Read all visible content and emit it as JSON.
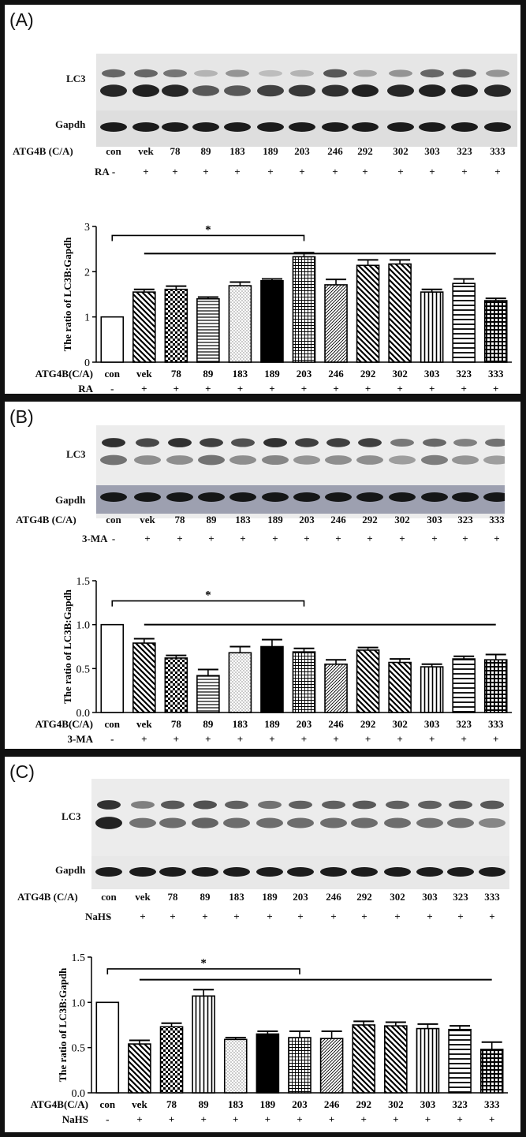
{
  "panels": [
    {
      "label": "(A)",
      "blot_labels": [
        "LC3",
        "Gapdh"
      ],
      "row1_title": "ATG4B (C/A)",
      "row2_title": "RA",
      "lanes": [
        "con",
        "vek",
        "78",
        "89",
        "183",
        "189",
        "203",
        "246",
        "292",
        "302",
        "303",
        "323",
        "333"
      ],
      "treatment": [
        "-",
        "+",
        "+",
        "+",
        "+",
        "+",
        "+",
        "+",
        "+",
        "+",
        "+",
        "+",
        "+"
      ],
      "chart_row1_title": "ATG4B(C/A)",
      "chart_row2_title": "RA"
    },
    {
      "label": "(B)",
      "blot_labels": [
        "LC3",
        "Gapdh"
      ],
      "row1_title": "ATG4B (C/A)",
      "row2_title": "3-MA",
      "lanes": [
        "con",
        "vek",
        "78",
        "89",
        "183",
        "189",
        "203",
        "246",
        "292",
        "302",
        "303",
        "323",
        "333"
      ],
      "treatment": [
        "-",
        "+",
        "+",
        "+",
        "+",
        "+",
        "+",
        "+",
        "+",
        "+",
        "+",
        "+",
        "+"
      ],
      "chart_row1_title": "ATG4B(C/A)",
      "chart_row2_title": "3-MA"
    },
    {
      "label": "(C)",
      "blot_labels": [
        "LC3",
        "Gapdh"
      ],
      "row1_title": "ATG4B (C/A)",
      "row2_title": "NaHS",
      "lanes": [
        "con",
        "vek",
        "78",
        "89",
        "183",
        "189",
        "203",
        "246",
        "292",
        "302",
        "303",
        "323",
        "333"
      ],
      "treatment": [
        "-",
        "+",
        "+",
        "+",
        "+",
        "+",
        "+",
        "+",
        "+",
        "+",
        "+",
        "+",
        "+"
      ],
      "chart_row1_title": "ATG4B(C/A)",
      "chart_row2_title": "NaHS"
    }
  ],
  "chart_data": [
    {
      "type": "bar",
      "categories": [
        "con",
        "vek",
        "78",
        "89",
        "183",
        "189",
        "203",
        "246",
        "292",
        "302",
        "303",
        "323",
        "333"
      ],
      "values": [
        1.0,
        1.55,
        1.61,
        1.4,
        1.69,
        1.8,
        2.33,
        1.71,
        2.14,
        2.17,
        1.55,
        1.74,
        1.36
      ],
      "errors": [
        0,
        0.06,
        0.07,
        0.04,
        0.08,
        0.04,
        0.09,
        0.12,
        0.12,
        0.09,
        0.06,
        0.1,
        0.05
      ],
      "patterns": [
        "open",
        "diagonal",
        "checker",
        "hstripes",
        "dots",
        "solid",
        "grid",
        "diag-dense",
        "diagonal",
        "diagonal",
        "vstripes",
        "hstripes-wide",
        "grid-dark"
      ],
      "ylabel": "The ratio of LC3B:Gapdh",
      "ylim": [
        0,
        3
      ],
      "yticks": [
        0,
        1,
        2,
        3
      ],
      "significance": "*"
    },
    {
      "type": "bar",
      "categories": [
        "con",
        "vek",
        "78",
        "89",
        "183",
        "189",
        "203",
        "246",
        "292",
        "302",
        "303",
        "323",
        "333"
      ],
      "values": [
        1.0,
        0.79,
        0.62,
        0.42,
        0.68,
        0.75,
        0.69,
        0.55,
        0.71,
        0.57,
        0.52,
        0.61,
        0.6
      ],
      "errors": [
        0,
        0.05,
        0.03,
        0.07,
        0.07,
        0.08,
        0.04,
        0.05,
        0.03,
        0.04,
        0.03,
        0.03,
        0.06
      ],
      "patterns": [
        "open",
        "diagonal",
        "checker",
        "hstripes",
        "dots",
        "solid",
        "grid",
        "diag-dense",
        "diagonal",
        "diagonal",
        "vstripes",
        "hstripes-wide",
        "grid-dark"
      ],
      "ylabel": "The ratio of LC3B:Gapdh",
      "ylim": [
        0,
        1.5
      ],
      "yticks": [
        0.0,
        0.5,
        1.0,
        1.5
      ],
      "significance": "*"
    },
    {
      "type": "bar",
      "categories": [
        "con",
        "vek",
        "78",
        "89",
        "183",
        "189",
        "203",
        "246",
        "292",
        "302",
        "303",
        "323",
        "333"
      ],
      "values": [
        1.0,
        0.54,
        0.73,
        1.07,
        0.59,
        0.65,
        0.61,
        0.6,
        0.75,
        0.74,
        0.71,
        0.7,
        0.48
      ],
      "errors": [
        0,
        0.04,
        0.04,
        0.07,
        0.02,
        0.03,
        0.07,
        0.08,
        0.04,
        0.04,
        0.05,
        0.04,
        0.08
      ],
      "patterns": [
        "open",
        "diagonal",
        "checker",
        "vstripes",
        "dots",
        "solid",
        "grid",
        "diag-dense",
        "diagonal",
        "diagonal",
        "vstripes",
        "hstripes-wide",
        "grid-dark"
      ],
      "ylabel": "The ratio of LC3B:Gapdh",
      "ylim": [
        0,
        1.5
      ],
      "yticks": [
        0.0,
        0.5,
        1.0,
        1.5
      ],
      "significance": "*"
    }
  ]
}
